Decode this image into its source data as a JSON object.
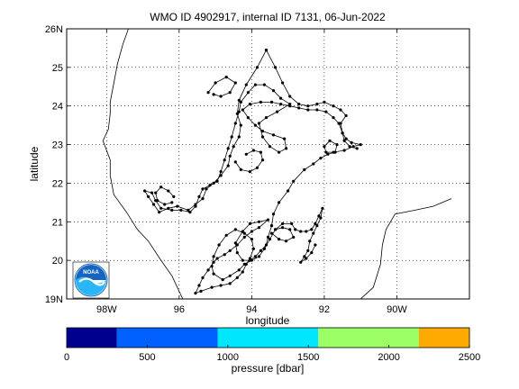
{
  "chart_data": {
    "type": "line",
    "title": "WMO ID 4902917, internal ID 7131, 06-Jun-2022",
    "xlabel": "longitude",
    "ylabel": "latitude",
    "xlim": [
      -99.1,
      -88.0
    ],
    "ylim": [
      19.0,
      26.0
    ],
    "grid": true,
    "x_ticks": [
      {
        "value": -98,
        "label": "98W"
      },
      {
        "value": -96,
        "label": "96"
      },
      {
        "value": -94,
        "label": "94"
      },
      {
        "value": -92,
        "label": "92"
      },
      {
        "value": -90,
        "label": "90W"
      }
    ],
    "y_ticks": [
      {
        "value": 19,
        "label": "19N"
      },
      {
        "value": 20,
        "label": "20"
      },
      {
        "value": 21,
        "label": "21"
      },
      {
        "value": 22,
        "label": "22"
      },
      {
        "value": 23,
        "label": "23"
      },
      {
        "value": 24,
        "label": "24"
      },
      {
        "value": 25,
        "label": "25"
      },
      {
        "value": 26,
        "label": "26N"
      }
    ],
    "coastline_west": [
      [
        -97.4,
        26.0
      ],
      [
        -97.55,
        25.6
      ],
      [
        -97.7,
        25.1
      ],
      [
        -97.8,
        24.6
      ],
      [
        -97.9,
        24.1
      ],
      [
        -97.9,
        23.8
      ],
      [
        -97.95,
        23.4
      ],
      [
        -98.1,
        23.1
      ],
      [
        -97.9,
        22.6
      ],
      [
        -97.9,
        22.2
      ],
      [
        -97.8,
        21.7
      ],
      [
        -97.45,
        21.25
      ],
      [
        -97.15,
        20.8
      ],
      [
        -96.85,
        20.5
      ],
      [
        -96.5,
        20.0
      ],
      [
        -96.2,
        19.6
      ],
      [
        -96.0,
        19.2
      ],
      [
        -95.9,
        19.0
      ]
    ],
    "coastline_east": [
      [
        -91.0,
        19.0
      ],
      [
        -90.65,
        19.3
      ],
      [
        -90.45,
        19.9
      ],
      [
        -90.4,
        20.4
      ],
      [
        -90.3,
        20.8
      ],
      [
        -90.05,
        21.2
      ],
      [
        -89.5,
        21.3
      ],
      [
        -89.0,
        21.4
      ],
      [
        -88.5,
        21.6
      ]
    ],
    "series": [
      {
        "points": [
          [
            -93.6,
            25.45
          ],
          [
            -93.35,
            25.0
          ],
          [
            -93.15,
            24.6
          ],
          [
            -92.95,
            24.25
          ],
          [
            -92.7,
            24.05
          ],
          [
            -92.45,
            24.0
          ],
          [
            -92.2,
            24.05
          ],
          [
            -92.0,
            24.1
          ],
          [
            -91.75,
            24.0
          ],
          [
            -91.55,
            23.9
          ],
          [
            -91.4,
            23.75
          ],
          [
            -91.55,
            23.55
          ],
          [
            -91.5,
            23.3
          ],
          [
            -91.4,
            23.15
          ],
          [
            -91.25,
            23.05
          ],
          [
            -91.0,
            23.0
          ],
          [
            -91.2,
            22.95
          ],
          [
            -91.45,
            22.85
          ],
          [
            -91.75,
            22.8
          ],
          [
            -91.95,
            22.8
          ],
          [
            -92.0,
            22.95
          ],
          [
            -91.85,
            23.1
          ],
          [
            -91.65,
            23.0
          ],
          [
            -91.7,
            22.8
          ],
          [
            -91.9,
            22.75
          ],
          [
            -92.1,
            22.65
          ],
          [
            -92.3,
            22.5
          ],
          [
            -92.55,
            22.35
          ],
          [
            -92.85,
            22.05
          ],
          [
            -93.0,
            21.8
          ],
          [
            -93.25,
            21.5
          ],
          [
            -93.4,
            21.2
          ],
          [
            -93.45,
            20.9
          ],
          [
            -93.55,
            20.6
          ],
          [
            -93.6,
            20.4
          ],
          [
            -93.75,
            20.25
          ],
          [
            -93.9,
            20.1
          ],
          [
            -94.05,
            20.0
          ],
          [
            -94.25,
            20.0
          ],
          [
            -94.4,
            20.2
          ],
          [
            -94.45,
            20.45
          ],
          [
            -94.25,
            20.75
          ],
          [
            -94.05,
            20.95
          ],
          [
            -93.8,
            21.0
          ],
          [
            -93.55,
            21.05
          ],
          [
            -93.8,
            20.85
          ],
          [
            -94.0,
            20.75
          ],
          [
            -94.2,
            20.6
          ],
          [
            -94.4,
            20.4
          ],
          [
            -94.6,
            20.25
          ],
          [
            -94.75,
            20.15
          ],
          [
            -94.95,
            20.05
          ],
          [
            -95.05,
            19.95
          ],
          [
            -95.2,
            19.75
          ],
          [
            -95.35,
            19.55
          ],
          [
            -95.45,
            19.35
          ],
          [
            -95.55,
            19.15
          ],
          [
            -95.4,
            19.2
          ],
          [
            -95.1,
            19.3
          ],
          [
            -94.85,
            19.35
          ],
          [
            -94.6,
            19.4
          ],
          [
            -94.4,
            19.55
          ],
          [
            -94.25,
            19.7
          ],
          [
            -94.15,
            19.9
          ],
          [
            -94.05,
            20.05
          ],
          [
            -93.95,
            20.3
          ],
          [
            -94.0,
            20.55
          ],
          [
            -94.2,
            20.7
          ],
          [
            -94.45,
            20.8
          ],
          [
            -94.7,
            20.65
          ],
          [
            -94.9,
            20.4
          ],
          [
            -95.05,
            20.1
          ],
          [
            -95.1,
            19.85
          ],
          [
            -95.05,
            19.65
          ],
          [
            -94.8,
            19.5
          ],
          [
            -94.6,
            19.6
          ],
          [
            -94.35,
            19.75
          ],
          [
            -94.2,
            19.9
          ],
          [
            -94.0,
            20.0
          ],
          [
            -93.8,
            20.1
          ],
          [
            -93.65,
            20.3
          ],
          [
            -93.5,
            20.55
          ],
          [
            -93.35,
            20.8
          ],
          [
            -93.15,
            20.95
          ],
          [
            -92.9,
            20.95
          ],
          [
            -92.8,
            20.8
          ],
          [
            -92.65,
            20.75
          ],
          [
            -92.5,
            20.75
          ],
          [
            -92.35,
            20.8
          ],
          [
            -92.25,
            20.95
          ],
          [
            -92.15,
            21.15
          ],
          [
            -92.05,
            21.35
          ],
          [
            -92.1,
            21.1
          ],
          [
            -92.2,
            20.9
          ],
          [
            -92.3,
            20.7
          ],
          [
            -92.4,
            20.5
          ],
          [
            -92.45,
            20.25
          ],
          [
            -92.55,
            20.1
          ],
          [
            -92.65,
            19.95
          ],
          [
            -92.5,
            20.05
          ],
          [
            -92.35,
            20.2
          ],
          [
            -92.25,
            20.4
          ]
        ]
      },
      {
        "points": [
          [
            -93.6,
            25.45
          ],
          [
            -93.85,
            25.0
          ],
          [
            -94.15,
            24.55
          ],
          [
            -94.35,
            24.15
          ],
          [
            -94.4,
            23.8
          ],
          [
            -94.3,
            23.5
          ],
          [
            -94.35,
            23.2
          ],
          [
            -94.5,
            22.95
          ],
          [
            -94.6,
            22.7
          ],
          [
            -94.65,
            22.45
          ],
          [
            -94.85,
            22.2
          ],
          [
            -95.05,
            22.0
          ],
          [
            -95.25,
            21.85
          ],
          [
            -95.35,
            21.6
          ],
          [
            -95.55,
            21.45
          ],
          [
            -95.75,
            21.3
          ],
          [
            -96.05,
            21.4
          ],
          [
            -96.3,
            21.35
          ],
          [
            -96.55,
            21.25
          ],
          [
            -96.7,
            21.45
          ],
          [
            -96.85,
            21.65
          ],
          [
            -96.95,
            21.8
          ],
          [
            -96.75,
            21.75
          ],
          [
            -96.65,
            21.55
          ],
          [
            -96.5,
            21.35
          ],
          [
            -96.2,
            21.3
          ],
          [
            -95.95,
            21.3
          ],
          [
            -95.7,
            21.25
          ],
          [
            -95.55,
            21.4
          ],
          [
            -95.45,
            21.65
          ],
          [
            -95.35,
            21.85
          ],
          [
            -95.15,
            21.95
          ],
          [
            -94.95,
            22.05
          ],
          [
            -94.85,
            22.3
          ],
          [
            -94.75,
            22.6
          ],
          [
            -94.65,
            22.9
          ],
          [
            -94.55,
            23.2
          ],
          [
            -94.45,
            23.55
          ],
          [
            -94.35,
            23.85
          ],
          [
            -94.3,
            24.1
          ],
          [
            -94.1,
            24.35
          ],
          [
            -93.9,
            24.55
          ],
          [
            -93.65,
            24.55
          ],
          [
            -93.4,
            24.4
          ],
          [
            -93.2,
            24.2
          ],
          [
            -92.95,
            24.05
          ],
          [
            -93.3,
            23.85
          ],
          [
            -93.6,
            23.7
          ],
          [
            -93.8,
            23.55
          ],
          [
            -93.7,
            23.2
          ],
          [
            -93.5,
            22.95
          ],
          [
            -93.25,
            22.8
          ],
          [
            -93.05,
            22.9
          ],
          [
            -93.1,
            23.15
          ],
          [
            -93.4,
            23.25
          ],
          [
            -93.7,
            23.35
          ],
          [
            -93.9,
            23.5
          ],
          [
            -94.1,
            23.7
          ],
          [
            -94.25,
            23.9
          ],
          [
            -94.05,
            24.05
          ],
          [
            -93.75,
            24.1
          ],
          [
            -93.45,
            24.1
          ],
          [
            -93.2,
            24.05
          ],
          [
            -92.95,
            24.0
          ],
          [
            -92.7,
            23.95
          ],
          [
            -92.45,
            23.9
          ],
          [
            -92.2,
            23.9
          ],
          [
            -91.95,
            23.85
          ],
          [
            -91.75,
            23.7
          ],
          [
            -91.6,
            23.55
          ],
          [
            -91.5,
            23.3
          ],
          [
            -91.45,
            23.1
          ],
          [
            -91.3,
            22.95
          ],
          [
            -91.1,
            22.9
          ]
        ]
      },
      {
        "points": [
          [
            -94.45,
            22.55
          ],
          [
            -94.3,
            22.35
          ],
          [
            -94.05,
            22.3
          ],
          [
            -93.85,
            22.4
          ],
          [
            -93.7,
            22.6
          ],
          [
            -93.75,
            22.8
          ],
          [
            -93.95,
            22.85
          ],
          [
            -94.15,
            22.75
          ]
        ]
      },
      {
        "points": [
          [
            -96.15,
            21.65
          ],
          [
            -96.3,
            21.8
          ],
          [
            -96.5,
            21.9
          ],
          [
            -96.65,
            21.75
          ],
          [
            -96.6,
            21.55
          ],
          [
            -96.4,
            21.45
          ],
          [
            -96.2,
            21.5
          ]
        ]
      },
      {
        "points": [
          [
            -95.2,
            24.35
          ],
          [
            -95.0,
            24.6
          ],
          [
            -94.7,
            24.75
          ],
          [
            -94.45,
            24.6
          ],
          [
            -94.6,
            24.35
          ],
          [
            -94.85,
            24.25
          ],
          [
            -95.05,
            24.3
          ]
        ]
      },
      {
        "points": [
          [
            -93.45,
            20.7
          ],
          [
            -93.25,
            20.55
          ],
          [
            -93.05,
            20.5
          ],
          [
            -92.85,
            20.6
          ],
          [
            -92.95,
            20.8
          ],
          [
            -93.15,
            20.85
          ],
          [
            -93.35,
            20.8
          ]
        ]
      }
    ]
  },
  "colorbar": {
    "label": "pressure [dbar]",
    "min": 0,
    "max": 2500,
    "tick_labels": [
      "0",
      "500",
      "1000",
      "1500",
      "2000",
      "2500"
    ],
    "tick_values": [
      0,
      500,
      1000,
      1500,
      2000,
      2500
    ],
    "bands": [
      {
        "from": 0,
        "to": 312,
        "color": "#00008f"
      },
      {
        "from": 312,
        "to": 937,
        "color": "#0060ff"
      },
      {
        "from": 937,
        "to": 1562,
        "color": "#00e6ff"
      },
      {
        "from": 1562,
        "to": 2187,
        "color": "#9cff66"
      },
      {
        "from": 2187,
        "to": 2500,
        "color": "#ffaa00"
      }
    ]
  },
  "logo": {
    "text": "NOAA",
    "colors": [
      "#1565c0",
      "#29b6f6",
      "#ffffff"
    ]
  }
}
